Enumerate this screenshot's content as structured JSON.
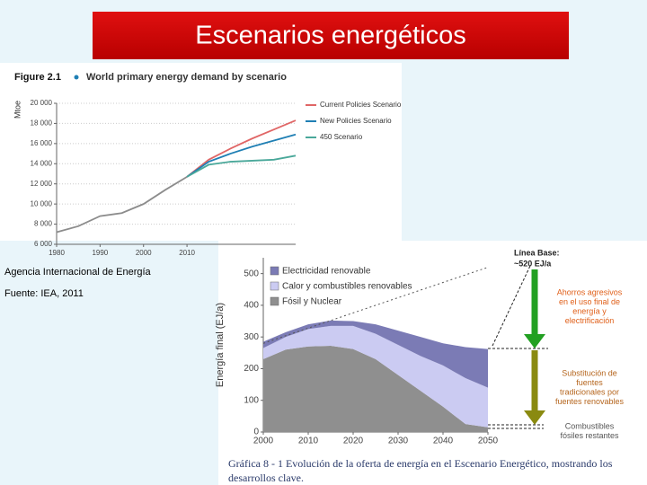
{
  "title": "Escenarios energéticos",
  "source_lines": [
    "Agencia Internacional de Energía",
    "Fuente: IEA, 2011"
  ],
  "chart_data": [
    {
      "type": "line",
      "figure_label": "Figure 2.1",
      "title": "World primary energy demand by scenario",
      "y_label": "Mtoe",
      "x": [
        1980,
        1985,
        1990,
        1995,
        2000,
        2005,
        2010,
        2015,
        2020,
        2025,
        2030,
        2035
      ],
      "xlim": [
        1980,
        2035
      ],
      "xticks": [
        1980,
        1990,
        2000,
        2010
      ],
      "ylim": [
        6000,
        20000
      ],
      "yticks": [
        {
          "value": 6000,
          "label": "6 000"
        },
        {
          "value": 8000,
          "label": "8 000"
        },
        {
          "value": 10000,
          "label": "10 000"
        },
        {
          "value": 12000,
          "label": "12 000"
        },
        {
          "value": 14000,
          "label": "14 000"
        },
        {
          "value": 16000,
          "label": "16 000"
        },
        {
          "value": 18000,
          "label": "18 000"
        },
        {
          "value": 20000,
          "label": "20 000"
        }
      ],
      "grid": true,
      "series": [
        {
          "color": "#8c8c8c",
          "values": [
            7200,
            7800,
            8800,
            9100,
            10000,
            11400,
            12700,
            null,
            null,
            null,
            null,
            null
          ]
        },
        {
          "name": "Current Policies Scenario",
          "color": "#e06666",
          "values": [
            null,
            null,
            null,
            null,
            null,
            null,
            12700,
            14400,
            15500,
            16500,
            17400,
            18300
          ]
        },
        {
          "name": "New Policies Scenario",
          "color": "#1f7fb4",
          "values": [
            null,
            null,
            null,
            null,
            null,
            null,
            12700,
            14200,
            15000,
            15700,
            16300,
            16900
          ]
        },
        {
          "name": "450 Scenario",
          "color": "#4aa89a",
          "values": [
            null,
            null,
            null,
            null,
            null,
            null,
            12700,
            13900,
            14200,
            14300,
            14400,
            14800
          ]
        }
      ]
    },
    {
      "type": "area",
      "stacked": true,
      "y_label": "Energía final (EJ/a)",
      "x": [
        2000,
        2005,
        2010,
        2015,
        2020,
        2025,
        2030,
        2035,
        2040,
        2045,
        2050
      ],
      "xlim": [
        2000,
        2050
      ],
      "xticks": [
        2000,
        2010,
        2020,
        2030,
        2040,
        2050
      ],
      "ylim": [
        0,
        550
      ],
      "yticks": [
        0,
        100,
        200,
        300,
        400,
        500
      ],
      "grid": false,
      "series": [
        {
          "name": "Fósil y Nuclear",
          "color": "#8f8f8f",
          "values": [
            230,
            260,
            270,
            272,
            262,
            230,
            180,
            130,
            80,
            25,
            15
          ]
        },
        {
          "name": "Calor y combustibles renovables",
          "color": "#cbcbf2",
          "values": [
            35,
            40,
            55,
            63,
            73,
            80,
            95,
            110,
            130,
            145,
            125
          ]
        },
        {
          "name": "Electricidad renovable",
          "color": "#7b7bb5",
          "values": [
            20,
            15,
            15,
            17,
            15,
            30,
            45,
            60,
            70,
            98,
            122
          ]
        }
      ],
      "baseline": {
        "label": "Línea Base:",
        "note": "~520 EJ/a",
        "values": [
          280,
          304,
          328,
          352,
          376,
          400,
          424,
          448,
          472,
          496,
          520
        ]
      },
      "annotations": [
        {
          "color": "#e0601a",
          "lines": [
            "Ahorros agresivos",
            "en el uso final de",
            "energía y",
            "electrificación"
          ]
        },
        {
          "color": "#b5651d",
          "lines": [
            "Substitución de",
            "fuentes",
            "tradicionales por",
            "fuentes renovables"
          ]
        },
        {
          "color": "#555555",
          "lines": [
            "Combustibles",
            "fósiles restantes"
          ]
        }
      ],
      "caption_lines": [
        "Gráfica 8 - 1   Evolución de la oferta de energía en el Escenario Energético, mostrando los",
        "desarrollos clave."
      ]
    }
  ]
}
